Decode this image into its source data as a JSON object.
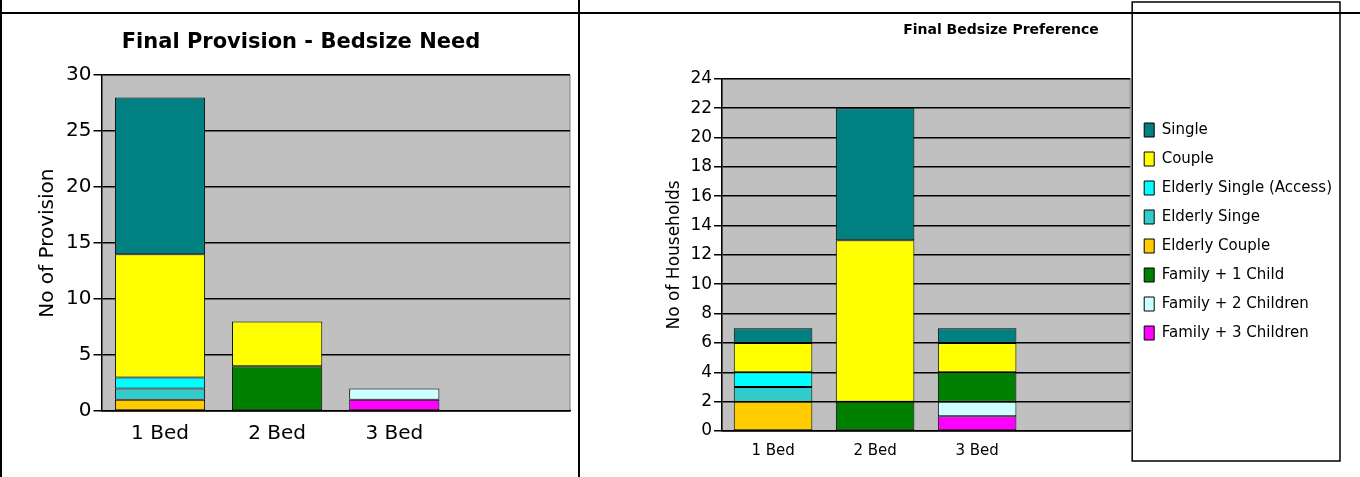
{
  "chart_data": [
    {
      "type": "bar",
      "title": "Final Provision - Bedsize Need",
      "ylabel": "No of Provision",
      "categories": [
        "1 Bed",
        "2 Bed",
        "3 Bed",
        null
      ],
      "stacked": true,
      "ylim": [
        0,
        30
      ],
      "yticks": [
        0,
        5,
        10,
        15,
        20,
        25,
        30
      ],
      "grid": "y",
      "legend": false,
      "series": [
        {
          "color": "#ff00ff",
          "values": [
            0,
            0,
            1,
            0
          ]
        },
        {
          "color": "#ccffff",
          "values": [
            0,
            0,
            1,
            0
          ]
        },
        {
          "color": "#008000",
          "values": [
            0,
            4,
            0,
            0
          ]
        },
        {
          "color": "#ffcc00",
          "values": [
            1,
            0,
            0,
            0
          ]
        },
        {
          "color": "#33cccc",
          "values": [
            1,
            0,
            0,
            0
          ]
        },
        {
          "color": "#00ffff",
          "values": [
            1,
            0,
            0,
            0
          ]
        },
        {
          "color": "#ffff00",
          "values": [
            11,
            4,
            0,
            0
          ]
        },
        {
          "color": "#008080",
          "values": [
            14,
            0,
            0,
            0
          ]
        }
      ]
    },
    {
      "type": "bar",
      "title": "Final Bedsize Preference",
      "ylabel": "No of Households",
      "categories": [
        "1 Bed",
        "2 Bed",
        "3 Bed",
        null
      ],
      "stacked": true,
      "ylim": [
        0,
        24
      ],
      "yticks": [
        0,
        2,
        4,
        6,
        8,
        10,
        12,
        14,
        16,
        18,
        20,
        22,
        24
      ],
      "grid": "y",
      "legend": "right",
      "series": [
        {
          "name": "Family + 3 Children",
          "color": "#ff00ff",
          "values": [
            0,
            0,
            1,
            0
          ]
        },
        {
          "name": "Family + 2 Children",
          "color": "#ccffff",
          "values": [
            0,
            0,
            1,
            0
          ]
        },
        {
          "name": "Family + 1 Child",
          "color": "#008000",
          "values": [
            0,
            2,
            2,
            0
          ]
        },
        {
          "name": "Elderly Couple",
          "color": "#ffcc00",
          "values": [
            2,
            0,
            0,
            0
          ]
        },
        {
          "name": "Elderly Singe",
          "color": "#33cccc",
          "values": [
            1,
            0,
            0,
            0
          ]
        },
        {
          "name": "Elderly Single (Access)",
          "color": "#00ffff",
          "values": [
            1,
            0,
            0,
            0
          ]
        },
        {
          "name": "Couple",
          "color": "#ffff00",
          "values": [
            2,
            11,
            2,
            0
          ]
        },
        {
          "name": "Single",
          "color": "#008080",
          "values": [
            1,
            9,
            1,
            0
          ]
        }
      ]
    }
  ]
}
